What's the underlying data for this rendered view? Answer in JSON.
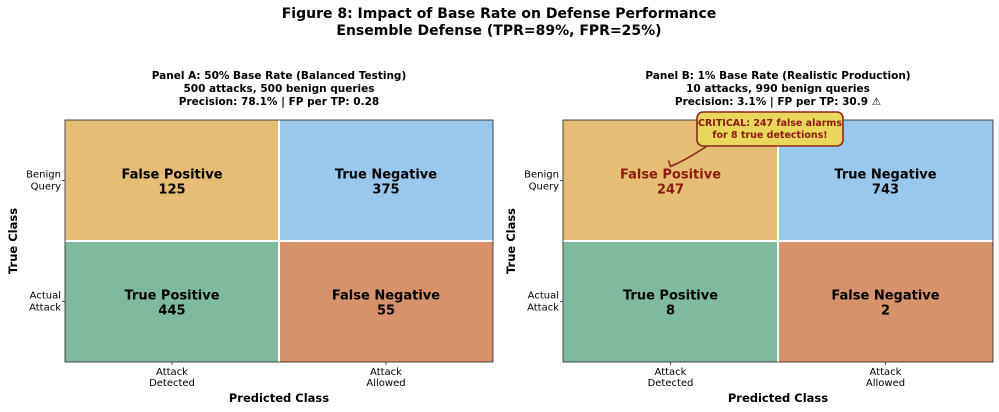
{
  "figure": {
    "title": "Figure 8: Impact of Base Rate on Defense Performance",
    "subtitle": "Ensemble Defense (TPR=89%, FPR=25%)"
  },
  "colors": {
    "false_positive": "#e6bd74",
    "true_negative": "#9ac8ec",
    "true_positive": "#7fba9f",
    "false_negative": "#d6926a",
    "critical_text": "#8b1a10",
    "annotation_fill": "#e8d75c",
    "annotation_border": "#8b2a1a"
  },
  "chart_data": [
    {
      "type": "heatmap",
      "title_lines": [
        "Panel A: 50% Base Rate (Balanced Testing)",
        "500 attacks, 500 benign queries",
        "Precision: 78.1% | FP per TP: 0.28"
      ],
      "xlabel": "Predicted Class",
      "ylabel": "True Class",
      "x_tick_labels": [
        [
          "Attack",
          "Detected"
        ],
        [
          "Attack",
          "Allowed"
        ]
      ],
      "y_tick_labels": [
        [
          "Benign",
          "Query"
        ],
        [
          "Actual",
          "Attack"
        ]
      ],
      "cells": [
        {
          "row": 0,
          "col": 0,
          "label": "False Positive",
          "value": 125,
          "kind": "false_positive"
        },
        {
          "row": 0,
          "col": 1,
          "label": "True Negative",
          "value": 375,
          "kind": "true_negative"
        },
        {
          "row": 1,
          "col": 0,
          "label": "True Positive",
          "value": 445,
          "kind": "true_positive"
        },
        {
          "row": 1,
          "col": 1,
          "label": "False Negative",
          "value": 55,
          "kind": "false_negative"
        }
      ]
    },
    {
      "type": "heatmap",
      "title_lines": [
        "Panel B: 1% Base Rate (Realistic Production)",
        "10 attacks, 990 benign queries",
        "Precision: 3.1% | FP per TP: 30.9 ⚠"
      ],
      "xlabel": "Predicted Class",
      "ylabel": "True Class",
      "x_tick_labels": [
        [
          "Attack",
          "Detected"
        ],
        [
          "Attack",
          "Allowed"
        ]
      ],
      "y_tick_labels": [
        [
          "Benign",
          "Query"
        ],
        [
          "Actual",
          "Attack"
        ]
      ],
      "cells": [
        {
          "row": 0,
          "col": 0,
          "label": "False Positive",
          "value": 247,
          "kind": "false_positive",
          "critical": true
        },
        {
          "row": 0,
          "col": 1,
          "label": "True Negative",
          "value": 743,
          "kind": "true_negative"
        },
        {
          "row": 1,
          "col": 0,
          "label": "True Positive",
          "value": 8,
          "kind": "true_positive"
        },
        {
          "row": 1,
          "col": 1,
          "label": "False Negative",
          "value": 2,
          "kind": "false_negative"
        }
      ],
      "annotation": {
        "lines": [
          "CRITICAL: 247 false alarms",
          "for 8 true detections!"
        ],
        "target_cell": {
          "row": 0,
          "col": 0
        }
      }
    }
  ]
}
